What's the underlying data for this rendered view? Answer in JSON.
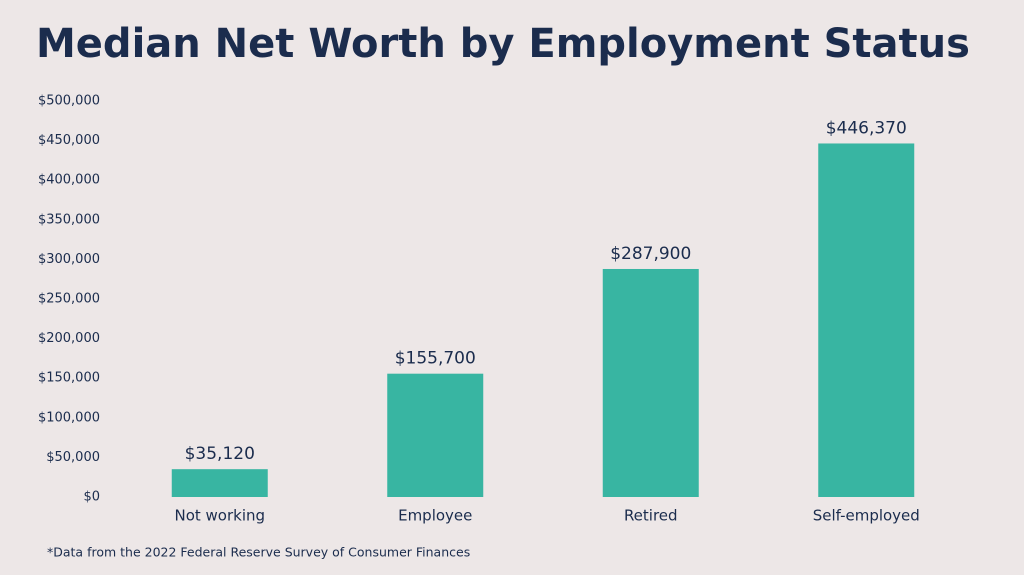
{
  "chart_data": {
    "type": "bar",
    "title": "Median Net Worth by Employment Status",
    "categories": [
      "Not working",
      "Employee",
      "Retired",
      "Self-employed"
    ],
    "values": [
      35120,
      155700,
      287900,
      446370
    ],
    "value_labels": [
      "$35,120",
      "$155,700",
      "$287,900",
      "$446,370"
    ],
    "color": "#38b5a2",
    "ylim": [
      0,
      500000
    ],
    "yticks": [
      {
        "value": 0,
        "label": "$0"
      },
      {
        "value": 50000,
        "label": "$50,000"
      },
      {
        "value": 100000,
        "label": "$100,000"
      },
      {
        "value": 150000,
        "label": "$150,000"
      },
      {
        "value": 200000,
        "label": "$200,000"
      },
      {
        "value": 250000,
        "label": "$250,000"
      },
      {
        "value": 300000,
        "label": "$300,000"
      },
      {
        "value": 350000,
        "label": "$350,000"
      },
      {
        "value": 400000,
        "label": "$400,000"
      },
      {
        "value": 450000,
        "label": "$450,000"
      },
      {
        "value": 500000,
        "label": "$500,000"
      }
    ],
    "grid": false,
    "footnote": "*Data from the 2022 Federal Reserve Survey of Consumer Finances"
  }
}
